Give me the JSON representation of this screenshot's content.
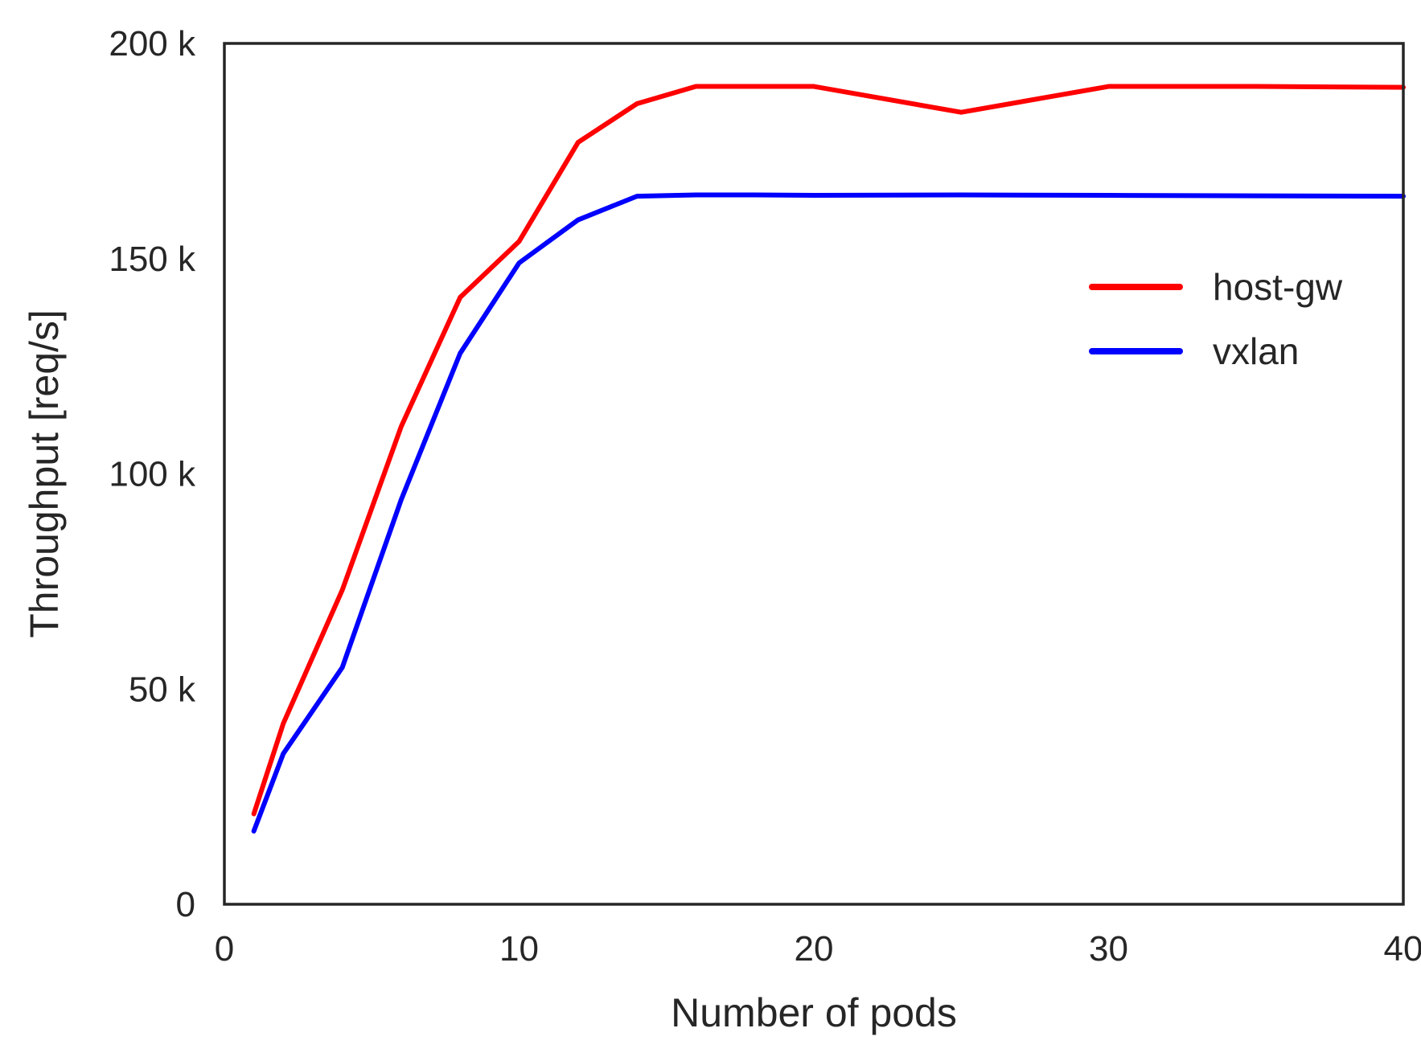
{
  "chart_data": {
    "type": "line",
    "title": "",
    "xlabel": "Number of pods",
    "ylabel": "Throughput [req/s]",
    "xlim": [
      0,
      40
    ],
    "ylim": [
      0,
      200000
    ],
    "x_ticks": [
      0,
      10,
      20,
      30,
      40
    ],
    "x_tick_labels": [
      "0",
      "10",
      "20",
      "30",
      "40"
    ],
    "y_ticks": [
      0,
      50000,
      100000,
      150000,
      200000
    ],
    "y_tick_labels": [
      "0",
      "50 k",
      "100 k",
      "150 k",
      "200 k"
    ],
    "grid": false,
    "legend_position": "upper-right",
    "series": [
      {
        "name": "host-gw",
        "color": "#ff0000",
        "x": [
          1,
          2,
          4,
          6,
          8,
          10,
          12,
          14,
          16,
          18,
          20,
          25,
          30,
          35,
          40
        ],
        "y": [
          21000,
          42000,
          73000,
          111000,
          141000,
          154000,
          177000,
          186000,
          190000,
          190000,
          190000,
          184000,
          190000,
          190000,
          189800
        ]
      },
      {
        "name": "vxlan",
        "color": "#0000ff",
        "x": [
          1,
          2,
          4,
          6,
          8,
          10,
          12,
          14,
          16,
          18,
          20,
          25,
          30,
          35,
          40
        ],
        "y": [
          17000,
          35000,
          55000,
          94000,
          128000,
          149000,
          159000,
          164500,
          164800,
          164800,
          164700,
          164800,
          164700,
          164600,
          164500
        ]
      }
    ]
  }
}
